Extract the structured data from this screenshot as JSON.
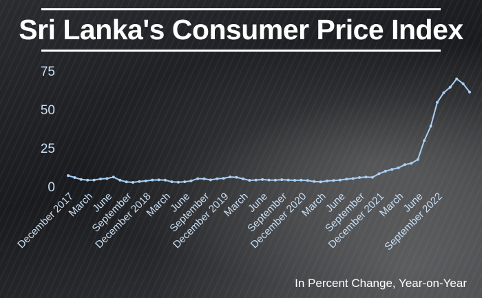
{
  "title": "Sri Lanka's Consumer Price Index",
  "caption": "In Percent Change, Year-on-Year",
  "colors": {
    "line": "#a9d0f5",
    "tick_text": "#c9dff5",
    "title": "#ffffff"
  },
  "chart_data": {
    "type": "line",
    "title": "Sri Lanka's Consumer Price Index",
    "xlabel": "",
    "ylabel": "",
    "ylim": [
      0,
      75
    ],
    "yticks": [
      0,
      25,
      50,
      75
    ],
    "grid": false,
    "x_tick_labels": [
      "December 2017",
      "March",
      "June",
      "September",
      "December 2018",
      "March",
      "June",
      "September",
      "December 2019",
      "March",
      "June",
      "September",
      "December 2020",
      "March",
      "June",
      "September",
      "December 2021",
      "March",
      "June",
      "September 2022"
    ],
    "series": [
      {
        "values": [
          7.1,
          5.8,
          4.6,
          4.1,
          4.2,
          4.9,
          5.2,
          6.1,
          4.1,
          3.0,
          2.7,
          3.2,
          3.6,
          4.2,
          4.3,
          4.1,
          3.1,
          2.8,
          3.1,
          3.7,
          5.1,
          5.0,
          4.3,
          5.0,
          5.3,
          6.2,
          6.0,
          5.0,
          4.0,
          4.2,
          4.5,
          4.2,
          4.1,
          4.4,
          4.2,
          4.0,
          4.1,
          3.9,
          3.2,
          3.0,
          3.6,
          3.9,
          4.2,
          4.8,
          5.2,
          5.8,
          6.1,
          6.0,
          8.3,
          9.9,
          11.1,
          12.1,
          14.2,
          15.1,
          17.5,
          29.8,
          39.1,
          54.6,
          60.8,
          64.4,
          69.8,
          66.7,
          61.3
        ]
      }
    ]
  }
}
